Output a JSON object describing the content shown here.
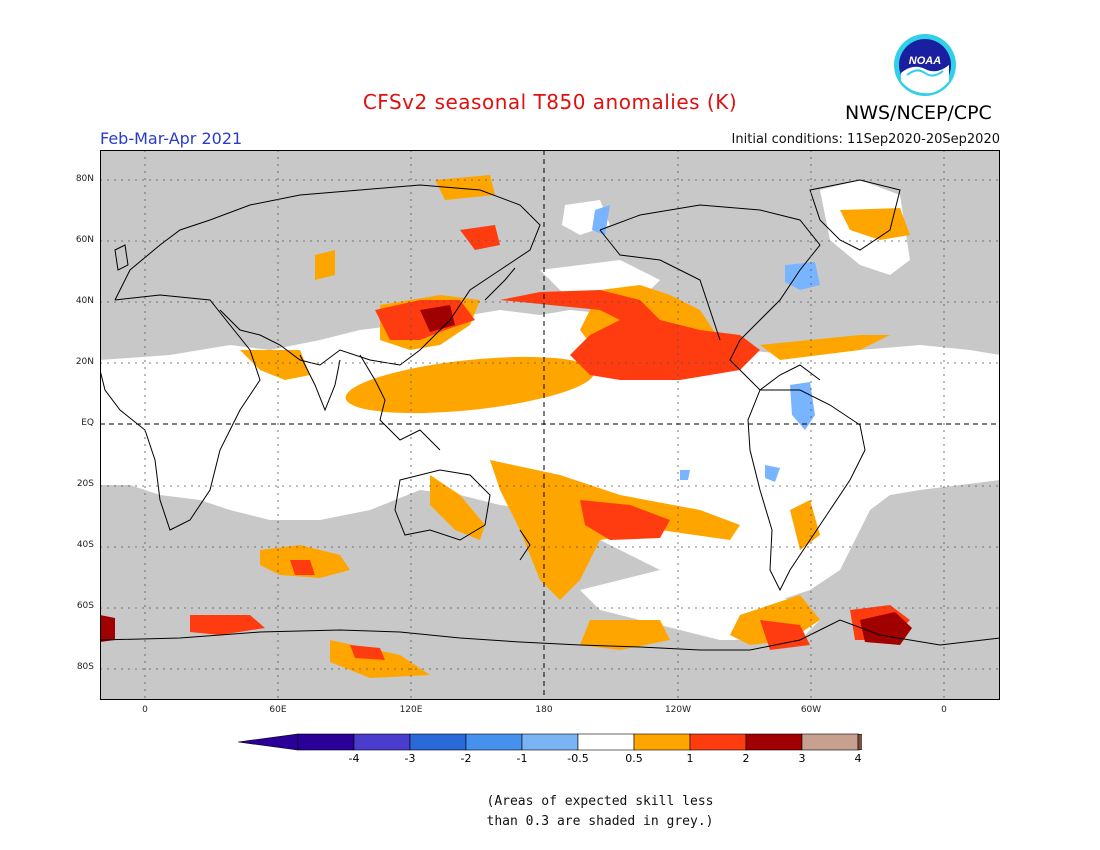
{
  "header": {
    "title": "CFSv2 seasonal T850 anomalies (K)",
    "season": "Feb-Mar-Apr 2021",
    "initial_conditions": "Initial conditions: 11Sep2020-20Sep2020",
    "organization": "NWS/NCEP/CPC",
    "logo_text": "NOAA"
  },
  "map": {
    "lat_labels": [
      "80N",
      "60N",
      "40N",
      "20N",
      "EQ",
      "20S",
      "40S",
      "60S",
      "80S"
    ],
    "lon_labels": [
      "0",
      "60E",
      "120E",
      "180",
      "120W",
      "60W",
      "0"
    ],
    "colors": {
      "skill_grey": "#c8c8c8",
      "neutral": "#ffffff",
      "pos_0_5_1": "#ffa500",
      "pos_1_2": "#ff3c10",
      "pos_2_3": "#a00000",
      "neg_0_5_1": "#78b4ff",
      "neg_1_2": "#3c8cf0"
    }
  },
  "colorbar": {
    "labels": [
      "-4",
      "-3",
      "-2",
      "-1",
      "-0.5",
      "0.5",
      "1",
      "2",
      "3",
      "4"
    ],
    "colors": [
      "#2a0099",
      "#4a3ccc",
      "#2a6ad8",
      "#4690ee",
      "#7ab4f4",
      "#ffffff",
      "#ffa500",
      "#ff3c10",
      "#a00000",
      "#c8a090"
    ],
    "end_low": "#2a0099",
    "end_high": "#7a5040"
  },
  "note": {
    "line1": "(Areas of expected skill less",
    "line2": "than 0.3 are shaded in grey.)"
  }
}
